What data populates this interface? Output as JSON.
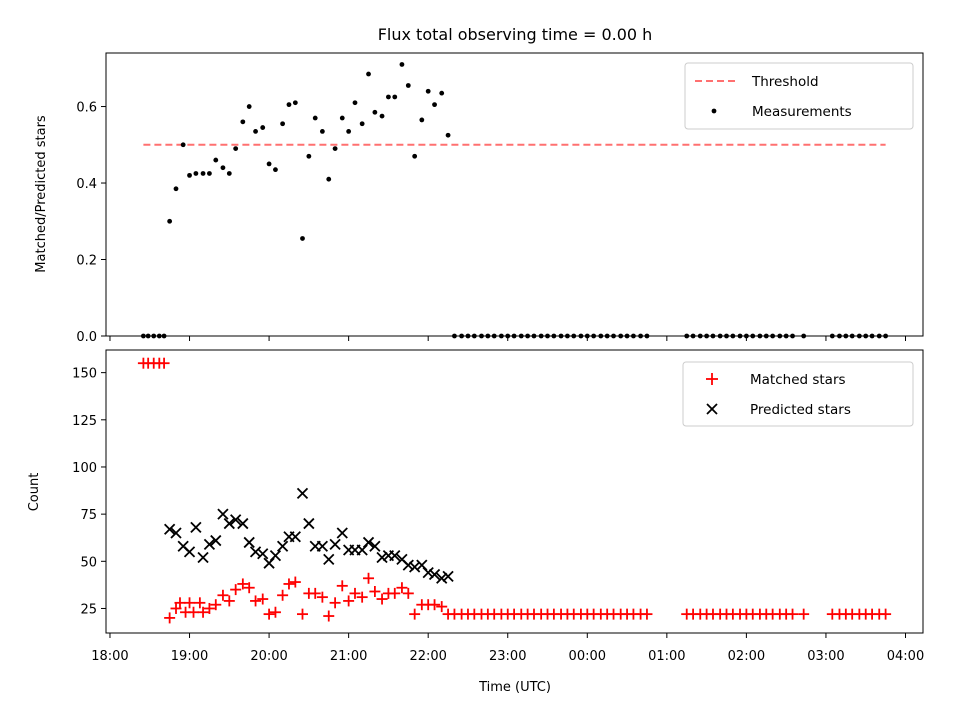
{
  "chart_data": [
    {
      "type": "scatter",
      "title": "Flux total observing time = 0.00 h",
      "ylabel": "Matched/Predicted stars",
      "ylim": [
        0,
        0.74
      ],
      "xlim": [
        17.95,
        28.22
      ],
      "yticks": [
        0.0,
        0.2,
        0.4,
        0.6
      ],
      "ytick_labels": [
        "0.0",
        "0.2",
        "0.4",
        "0.6"
      ],
      "legend_position": "top-right",
      "threshold": {
        "name": "Threshold",
        "value": 0.5,
        "x": [
          18.42,
          27.75
        ],
        "color": "#ff7070"
      },
      "series": [
        {
          "name": "Measurements",
          "color": "#000000",
          "points": [
            [
              18.42,
              0
            ],
            [
              18.48,
              0
            ],
            [
              18.55,
              0
            ],
            [
              18.62,
              0
            ],
            [
              18.68,
              0
            ],
            [
              18.75,
              0.3
            ],
            [
              18.83,
              0.385
            ],
            [
              18.92,
              0.5
            ],
            [
              19.0,
              0.42
            ],
            [
              19.08,
              0.425
            ],
            [
              19.17,
              0.425
            ],
            [
              19.25,
              0.425
            ],
            [
              19.33,
              0.46
            ],
            [
              19.42,
              0.44
            ],
            [
              19.5,
              0.425
            ],
            [
              19.58,
              0.49
            ],
            [
              19.67,
              0.56
            ],
            [
              19.75,
              0.6
            ],
            [
              19.83,
              0.535
            ],
            [
              19.92,
              0.545
            ],
            [
              20.0,
              0.45
            ],
            [
              20.08,
              0.435
            ],
            [
              20.17,
              0.555
            ],
            [
              20.25,
              0.605
            ],
            [
              20.33,
              0.61
            ],
            [
              20.42,
              0.255
            ],
            [
              20.5,
              0.47
            ],
            [
              20.58,
              0.57
            ],
            [
              20.67,
              0.535
            ],
            [
              20.75,
              0.41
            ],
            [
              20.83,
              0.49
            ],
            [
              20.92,
              0.57
            ],
            [
              21.0,
              0.535
            ],
            [
              21.08,
              0.61
            ],
            [
              21.17,
              0.555
            ],
            [
              21.25,
              0.685
            ],
            [
              21.33,
              0.585
            ],
            [
              21.42,
              0.575
            ],
            [
              21.5,
              0.625
            ],
            [
              21.58,
              0.625
            ],
            [
              21.67,
              0.71
            ],
            [
              21.75,
              0.655
            ],
            [
              21.83,
              0.47
            ],
            [
              21.92,
              0.565
            ],
            [
              22.0,
              0.64
            ],
            [
              22.08,
              0.605
            ],
            [
              22.17,
              0.635
            ],
            [
              22.25,
              0.525
            ],
            [
              22.33,
              0
            ],
            [
              22.42,
              0
            ],
            [
              22.5,
              0
            ],
            [
              22.58,
              0
            ],
            [
              22.67,
              0
            ],
            [
              22.75,
              0
            ],
            [
              22.83,
              0
            ],
            [
              22.92,
              0
            ],
            [
              23.0,
              0
            ],
            [
              23.08,
              0
            ],
            [
              23.17,
              0
            ],
            [
              23.25,
              0
            ],
            [
              23.33,
              0
            ],
            [
              23.42,
              0
            ],
            [
              23.5,
              0
            ],
            [
              23.58,
              0
            ],
            [
              23.67,
              0
            ],
            [
              23.75,
              0
            ],
            [
              23.83,
              0
            ],
            [
              23.92,
              0
            ],
            [
              24.0,
              0
            ],
            [
              24.08,
              0
            ],
            [
              24.17,
              0
            ],
            [
              24.25,
              0
            ],
            [
              24.33,
              0
            ],
            [
              24.42,
              0
            ],
            [
              24.5,
              0
            ],
            [
              24.58,
              0
            ],
            [
              24.67,
              0
            ],
            [
              24.75,
              0
            ],
            [
              25.25,
              0
            ],
            [
              25.33,
              0
            ],
            [
              25.42,
              0
            ],
            [
              25.5,
              0
            ],
            [
              25.58,
              0
            ],
            [
              25.67,
              0
            ],
            [
              25.75,
              0
            ],
            [
              25.83,
              0
            ],
            [
              25.92,
              0
            ],
            [
              26.0,
              0
            ],
            [
              26.08,
              0
            ],
            [
              26.17,
              0
            ],
            [
              26.25,
              0
            ],
            [
              26.33,
              0
            ],
            [
              26.42,
              0
            ],
            [
              26.5,
              0
            ],
            [
              26.58,
              0
            ],
            [
              26.72,
              0
            ],
            [
              27.08,
              0
            ],
            [
              27.17,
              0
            ],
            [
              27.25,
              0
            ],
            [
              27.33,
              0
            ],
            [
              27.42,
              0
            ],
            [
              27.5,
              0
            ],
            [
              27.58,
              0
            ],
            [
              27.67,
              0
            ],
            [
              27.75,
              0
            ]
          ]
        }
      ]
    },
    {
      "type": "scatter",
      "xlabel": "Time (UTC)",
      "ylabel": "Count",
      "ylim": [
        12,
        162
      ],
      "xlim": [
        17.95,
        28.22
      ],
      "yticks": [
        25,
        50,
        75,
        100,
        125,
        150
      ],
      "ytick_labels": [
        "25",
        "50",
        "75",
        "100",
        "125",
        "150"
      ],
      "xticks": [
        18,
        19,
        20,
        21,
        22,
        23,
        24,
        25,
        26,
        27,
        28
      ],
      "xtick_labels": [
        "18:00",
        "19:00",
        "20:00",
        "21:00",
        "22:00",
        "23:00",
        "00:00",
        "01:00",
        "02:00",
        "03:00",
        "04:00"
      ],
      "legend_position": "top-right",
      "series": [
        {
          "name": "Matched stars",
          "marker": "+",
          "color": "#ff0000",
          "points": [
            [
              18.42,
              155
            ],
            [
              18.48,
              155
            ],
            [
              18.55,
              155
            ],
            [
              18.62,
              155
            ],
            [
              18.68,
              155
            ],
            [
              18.75,
              20
            ],
            [
              18.83,
              25
            ],
            [
              18.88,
              28
            ],
            [
              18.95,
              23
            ],
            [
              19.0,
              28
            ],
            [
              19.05,
              23
            ],
            [
              19.13,
              28
            ],
            [
              19.17,
              23
            ],
            [
              19.25,
              25
            ],
            [
              19.33,
              27
            ],
            [
              19.42,
              32
            ],
            [
              19.5,
              29
            ],
            [
              19.58,
              35
            ],
            [
              19.67,
              38
            ],
            [
              19.75,
              36
            ],
            [
              19.83,
              29
            ],
            [
              19.92,
              30
            ],
            [
              20.0,
              22
            ],
            [
              20.08,
              23
            ],
            [
              20.17,
              32
            ],
            [
              20.25,
              38
            ],
            [
              20.33,
              39
            ],
            [
              20.42,
              22
            ],
            [
              20.5,
              33
            ],
            [
              20.58,
              33
            ],
            [
              20.67,
              31
            ],
            [
              20.75,
              21
            ],
            [
              20.83,
              28
            ],
            [
              20.92,
              37
            ],
            [
              21.0,
              29
            ],
            [
              21.08,
              33
            ],
            [
              21.17,
              31
            ],
            [
              21.25,
              41
            ],
            [
              21.33,
              34
            ],
            [
              21.42,
              30
            ],
            [
              21.5,
              33
            ],
            [
              21.58,
              33
            ],
            [
              21.67,
              36
            ],
            [
              21.75,
              33
            ],
            [
              21.83,
              22
            ],
            [
              21.92,
              27
            ],
            [
              22.0,
              27
            ],
            [
              22.08,
              27
            ],
            [
              22.17,
              26
            ],
            [
              22.25,
              22
            ],
            [
              22.33,
              22
            ],
            [
              22.42,
              22
            ],
            [
              22.5,
              22
            ],
            [
              22.58,
              22
            ],
            [
              22.67,
              22
            ],
            [
              22.75,
              22
            ],
            [
              22.83,
              22
            ],
            [
              22.92,
              22
            ],
            [
              23.0,
              22
            ],
            [
              23.08,
              22
            ],
            [
              23.17,
              22
            ],
            [
              23.25,
              22
            ],
            [
              23.33,
              22
            ],
            [
              23.42,
              22
            ],
            [
              23.5,
              22
            ],
            [
              23.58,
              22
            ],
            [
              23.67,
              22
            ],
            [
              23.75,
              22
            ],
            [
              23.83,
              22
            ],
            [
              23.92,
              22
            ],
            [
              24.0,
              22
            ],
            [
              24.08,
              22
            ],
            [
              24.17,
              22
            ],
            [
              24.25,
              22
            ],
            [
              24.33,
              22
            ],
            [
              24.42,
              22
            ],
            [
              24.5,
              22
            ],
            [
              24.58,
              22
            ],
            [
              24.67,
              22
            ],
            [
              24.75,
              22
            ],
            [
              25.25,
              22
            ],
            [
              25.33,
              22
            ],
            [
              25.42,
              22
            ],
            [
              25.5,
              22
            ],
            [
              25.58,
              22
            ],
            [
              25.67,
              22
            ],
            [
              25.75,
              22
            ],
            [
              25.83,
              22
            ],
            [
              25.92,
              22
            ],
            [
              26.0,
              22
            ],
            [
              26.08,
              22
            ],
            [
              26.17,
              22
            ],
            [
              26.25,
              22
            ],
            [
              26.33,
              22
            ],
            [
              26.42,
              22
            ],
            [
              26.5,
              22
            ],
            [
              26.58,
              22
            ],
            [
              26.72,
              22
            ],
            [
              27.08,
              22
            ],
            [
              27.17,
              22
            ],
            [
              27.25,
              22
            ],
            [
              27.33,
              22
            ],
            [
              27.42,
              22
            ],
            [
              27.5,
              22
            ],
            [
              27.58,
              22
            ],
            [
              27.67,
              22
            ],
            [
              27.75,
              22
            ]
          ]
        },
        {
          "name": "Predicted stars",
          "marker": "x",
          "color": "#000000",
          "points": [
            [
              18.75,
              67
            ],
            [
              18.83,
              65
            ],
            [
              18.92,
              58
            ],
            [
              19.0,
              55
            ],
            [
              19.08,
              68
            ],
            [
              19.17,
              52
            ],
            [
              19.25,
              59
            ],
            [
              19.33,
              61
            ],
            [
              19.42,
              75
            ],
            [
              19.5,
              70
            ],
            [
              19.58,
              72
            ],
            [
              19.67,
              70
            ],
            [
              19.75,
              60
            ],
            [
              19.83,
              55
            ],
            [
              19.92,
              54
            ],
            [
              20.0,
              49
            ],
            [
              20.08,
              53
            ],
            [
              20.17,
              58
            ],
            [
              20.25,
              63
            ],
            [
              20.33,
              63
            ],
            [
              20.42,
              86
            ],
            [
              20.5,
              70
            ],
            [
              20.58,
              58
            ],
            [
              20.67,
              58
            ],
            [
              20.75,
              51
            ],
            [
              20.83,
              59
            ],
            [
              20.92,
              65
            ],
            [
              21.0,
              56
            ],
            [
              21.08,
              56
            ],
            [
              21.17,
              56
            ],
            [
              21.25,
              60
            ],
            [
              21.33,
              58
            ],
            [
              21.42,
              52
            ],
            [
              21.5,
              53
            ],
            [
              21.58,
              53
            ],
            [
              21.67,
              51
            ],
            [
              21.75,
              48
            ],
            [
              21.83,
              47
            ],
            [
              21.92,
              48
            ],
            [
              22.0,
              44
            ],
            [
              22.08,
              43
            ],
            [
              22.17,
              41
            ],
            [
              22.25,
              42
            ]
          ]
        }
      ]
    }
  ]
}
